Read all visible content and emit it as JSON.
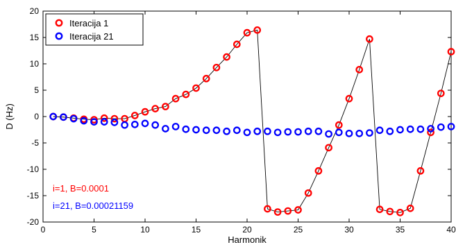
{
  "chart_data": {
    "type": "scatter",
    "xlabel": "Harmonik",
    "ylabel": "D (Hz)",
    "xlim": [
      0,
      40
    ],
    "ylim": [
      -20,
      20
    ],
    "x_ticks": [
      0,
      5,
      10,
      15,
      20,
      25,
      30,
      35,
      40
    ],
    "y_ticks": [
      -20,
      -15,
      -10,
      -5,
      0,
      5,
      10,
      15,
      20
    ],
    "grid": false,
    "legend_position": "top-left",
    "x": [
      1,
      2,
      3,
      4,
      5,
      6,
      7,
      8,
      9,
      10,
      11,
      12,
      13,
      14,
      15,
      16,
      17,
      18,
      19,
      20,
      21,
      22,
      23,
      24,
      25,
      26,
      27,
      28,
      29,
      30,
      31,
      32,
      33,
      34,
      35,
      36,
      37,
      38,
      39,
      40
    ],
    "series": [
      {
        "name": "Iteracija 1",
        "color": "#ff0000",
        "connect_line": true,
        "values": [
          0.0,
          -0.1,
          -0.3,
          -0.5,
          -0.6,
          -0.3,
          -0.4,
          -0.4,
          0.2,
          0.9,
          1.5,
          1.9,
          3.4,
          4.2,
          5.4,
          7.2,
          9.3,
          11.3,
          13.7,
          15.9,
          16.4,
          -17.5,
          -18.1,
          -17.9,
          -17.7,
          -14.5,
          -10.3,
          -5.9,
          -1.6,
          3.4,
          8.9,
          14.7,
          -17.6,
          -18.0,
          -18.2,
          -17.4,
          -10.3,
          -3.0,
          4.4,
          12.3
        ]
      },
      {
        "name": "Iteracija 21",
        "color": "#0000ff",
        "connect_line": false,
        "values": [
          0.0,
          -0.1,
          -0.4,
          -0.8,
          -1.0,
          -1.0,
          -1.1,
          -1.6,
          -1.5,
          -1.3,
          -1.6,
          -2.3,
          -1.9,
          -2.4,
          -2.5,
          -2.6,
          -2.6,
          -2.8,
          -2.6,
          -3.0,
          -2.8,
          -2.8,
          -3.0,
          -2.9,
          -2.9,
          -2.8,
          -2.8,
          -3.3,
          -3.0,
          -3.2,
          -3.2,
          -3.1,
          -2.6,
          -2.8,
          -2.5,
          -2.4,
          -2.4,
          -2.3,
          -2.0,
          -1.9
        ]
      }
    ],
    "annotations": [
      {
        "text": "i=1, B=0.0001",
        "color": "#ff0000"
      },
      {
        "text": "i=21, B=0.00021159",
        "color": "#0000ff"
      }
    ]
  }
}
